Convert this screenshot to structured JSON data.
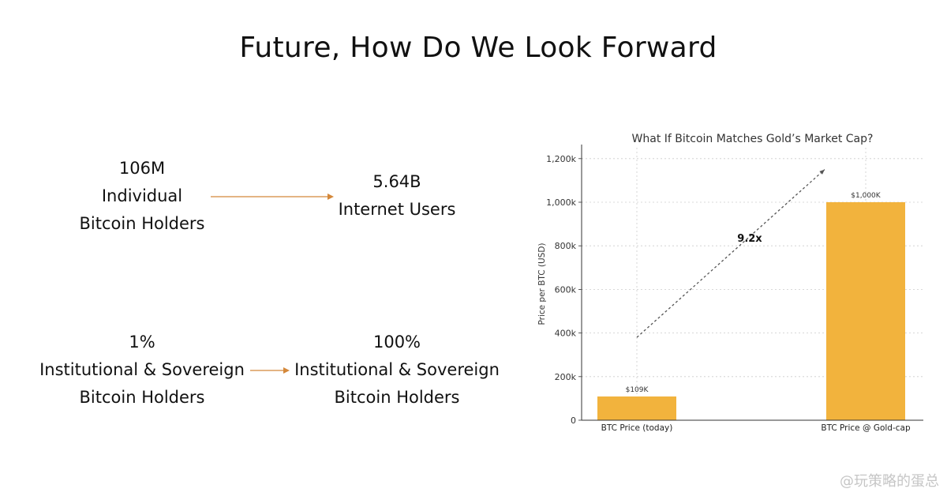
{
  "slide": {
    "title": "Future, How Do We Look Forward"
  },
  "comparisons": [
    {
      "from": {
        "value": "106M",
        "line1": "Individual",
        "line2": "Bitcoin Holders"
      },
      "to": {
        "value": "5.64B",
        "line1": "Internet Users"
      }
    },
    {
      "from": {
        "value": "1%",
        "line1": "Institutional & Sovereign",
        "line2": "Bitcoin Holders"
      },
      "to": {
        "value": "100%",
        "line1": "Institutional & Sovereign",
        "line2": "Bitcoin Holders"
      }
    }
  ],
  "colors": {
    "arrow": "#d4883a",
    "bar": "#f2b33d",
    "grid": "#cccccc",
    "trend": "#555555"
  },
  "chart_data": {
    "type": "bar",
    "title": "What If Bitcoin Matches Gold’s Market Cap?",
    "xlabel": "",
    "ylabel": "Price per BTC (USD)",
    "categories": [
      "BTC Price (today)",
      "BTC Price @ Gold-cap"
    ],
    "values": [
      109000,
      1000000
    ],
    "data_labels": [
      "$109K",
      "$1,000K"
    ],
    "ylim": [
      0,
      1250000
    ],
    "yticks": [
      0,
      200000,
      400000,
      600000,
      800000,
      1000000,
      1200000
    ],
    "ytick_labels": [
      "0",
      "200k",
      "400k",
      "600k",
      "800k",
      "1,000k",
      "1,200k"
    ],
    "grid": true,
    "annotation": {
      "text": "9.2x",
      "arrow_from": {
        "x": "BTC Price (today)",
        "y": 380000
      },
      "arrow_to": {
        "x": "BTC Price @ Gold-cap",
        "y": 1150000
      }
    }
  },
  "watermark": "@玩策略的蛋总"
}
